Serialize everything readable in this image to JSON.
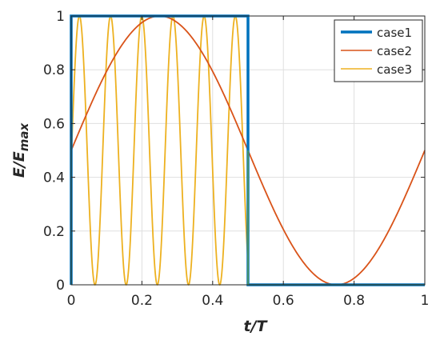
{
  "chart_data": {
    "type": "line",
    "xlabel": "t/T",
    "ylabel": "E/E",
    "ylabel_sub": "max",
    "xlim": [
      0,
      1
    ],
    "ylim": [
      0,
      1
    ],
    "x_ticks": [
      "0",
      "0.2",
      "0.4",
      "0.6",
      "0.8",
      "1"
    ],
    "y_ticks": [
      "0",
      "0.2",
      "0.4",
      "0.6",
      "0.8",
      "1"
    ],
    "grid": true,
    "legend_position": "top-right",
    "series": [
      {
        "name": "case1",
        "color": "#0072bd",
        "shape": "square pulse",
        "x": [
          0,
          0,
          0.5,
          0.5,
          1
        ],
        "y": [
          0,
          1,
          1,
          0,
          0
        ]
      },
      {
        "name": "case2",
        "color": "#d95319",
        "shape": "sin^2(pi*(t+0.25))",
        "period": 1,
        "x_range": [
          0,
          1
        ],
        "y_at_x": {
          "0": 0.5,
          "0.25": 1,
          "0.5": 0.5,
          "0.75": 0,
          "1": 0.5
        }
      },
      {
        "name": "case3",
        "color": "#edb120",
        "shape": "sin^2 oscillation on [0, 0.5], zero after",
        "peaks_x": [
          0.0245,
          0.1109,
          0.2,
          0.2863,
          0.3745
        ],
        "minima_x": [
          0.0673,
          0.1546,
          0.2432,
          0.3318,
          0.42
        ],
        "cutoff_x": 0.5
      }
    ]
  }
}
